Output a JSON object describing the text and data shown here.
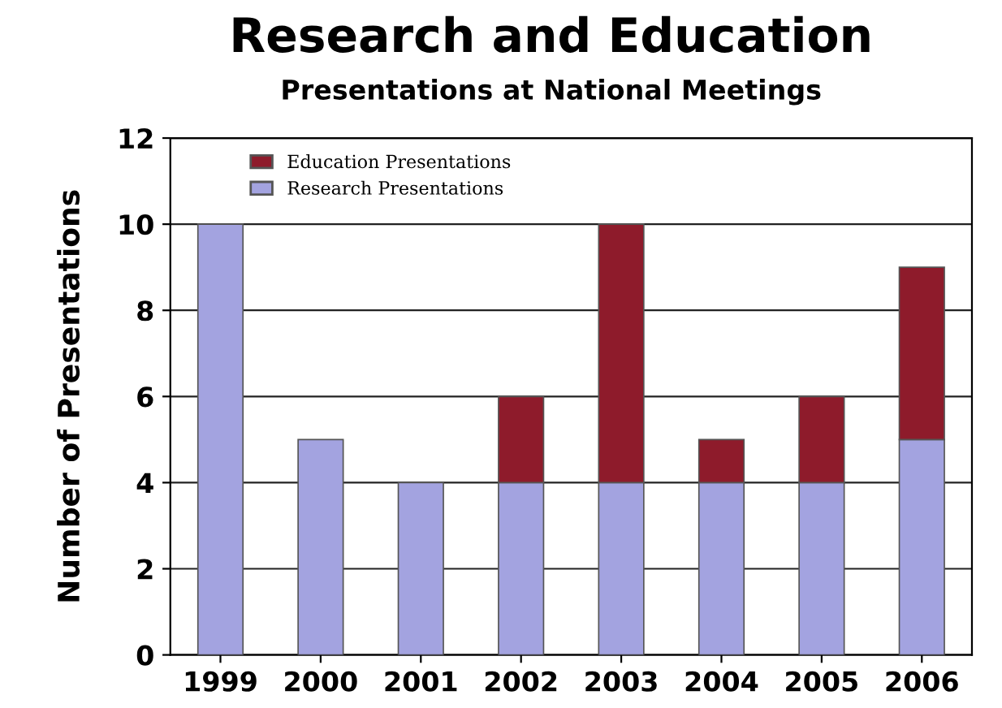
{
  "chart_data": {
    "type": "bar",
    "title": "Research and Education",
    "subtitle": "Presentations at National Meetings",
    "ylabel": "Number of Presentations",
    "categories": [
      "1999",
      "2000",
      "2001",
      "2002",
      "2003",
      "2004",
      "2005",
      "2006"
    ],
    "stacked": true,
    "series": [
      {
        "name": "Research Presentations",
        "color": "#a3a3e0",
        "values": [
          10,
          5,
          4,
          4,
          4,
          4,
          4,
          5
        ]
      },
      {
        "name": "Education Presentations",
        "color": "#8e1b2b",
        "values": [
          null,
          null,
          null,
          2,
          6,
          1,
          2,
          4
        ]
      }
    ],
    "ylim": [
      0,
      12
    ],
    "yticks": [
      0,
      2,
      4,
      6,
      8,
      10,
      12
    ],
    "grid": "y",
    "legend": "top left"
  }
}
